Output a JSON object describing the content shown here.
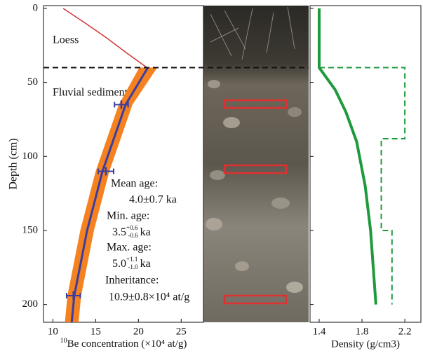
{
  "chart_data": [
    {
      "type": "profile",
      "xlabel_sup": "10",
      "xlabel": "Be concentration (×10⁴ at/g)",
      "ylabel": "Depth (cm)",
      "xlim": [
        8.9,
        27.6
      ],
      "xticks": [
        10,
        15,
        20,
        25
      ],
      "ylim": [
        0,
        212
      ],
      "yticks": [
        0,
        50,
        100,
        150,
        200
      ],
      "boundary": 40,
      "annotations": [
        "Loess",
        "Fluvial sediment"
      ],
      "ages": {
        "mean_label": "Mean age:",
        "mean": "4.0±0.7 ka",
        "min_label": "Min. age:",
        "min": "3.5",
        "min_plus": "+0.6",
        "min_minus": "-0.6",
        "min_unit": "ka",
        "max_label": "Max. age:",
        "max": "5.0",
        "max_plus": "+1.1",
        "max_minus": "-1.0",
        "max_unit": "ka",
        "inh_label": "Inheritance:",
        "inh": "10.9±0.8×10⁴ at/g"
      },
      "loess_curve": {
        "color": "#d0373a",
        "x": [
          11.2,
          13.8,
          16.3,
          18.6,
          21
        ],
        "y": [
          0,
          10,
          20,
          30,
          40
        ]
      },
      "band": {
        "color": "#f58220",
        "y": [
          40,
          65,
          110,
          150,
          194,
          212
        ],
        "low": [
          20.1,
          17.7,
          15,
          13.2,
          11.7,
          11.4
        ],
        "high": [
          22.2,
          19.3,
          16.6,
          14.8,
          13.3,
          13
        ]
      },
      "model": {
        "color": "#3b3ea0",
        "y": [
          40,
          65,
          110,
          150,
          194,
          212
        ],
        "x": [
          21.1,
          18.5,
          15.8,
          14,
          12.5,
          12.2
        ]
      },
      "samples": {
        "color": "#3b3ea0",
        "x": [
          18,
          16.2,
          12.4
        ],
        "y": [
          65,
          110,
          194
        ],
        "xerr": [
          0.8,
          0.9,
          0.8
        ]
      }
    },
    {
      "type": "line",
      "xlabel": "Density (g/cm3)",
      "xlim": [
        1.315,
        2.35
      ],
      "xticks": [
        1.4,
        1.8,
        2.2
      ],
      "ylim": [
        0,
        212
      ],
      "yticks": [
        0,
        50,
        100,
        150,
        200
      ],
      "series": [
        {
          "color": "#1e9a3c",
          "style": "solid",
          "x": [
            1.4,
            1.4,
            1.45,
            1.55,
            1.65,
            1.75,
            1.83,
            1.88,
            1.93
          ],
          "y": [
            0,
            40,
            45,
            55,
            70,
            90,
            120,
            150,
            200
          ]
        },
        {
          "color": "#1e9a3c",
          "style": "dashed",
          "x": [
            1.4,
            2.2,
            2.2,
            1.98,
            1.98,
            2.08,
            2.08
          ],
          "y": [
            40,
            40,
            88,
            88,
            150,
            150,
            200
          ]
        }
      ]
    }
  ]
}
